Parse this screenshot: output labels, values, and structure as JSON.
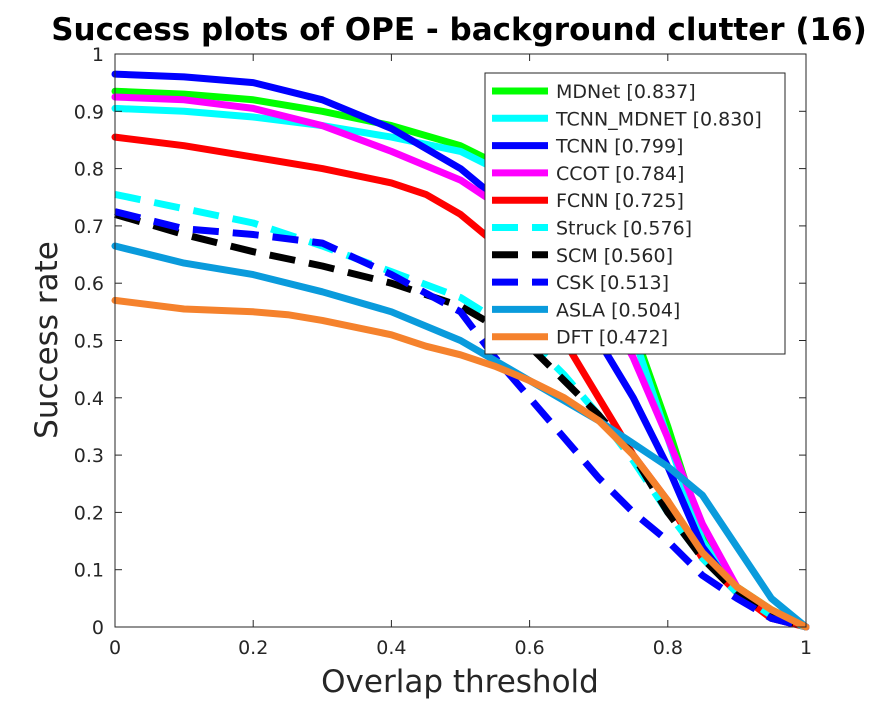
{
  "chart_data": {
    "type": "line",
    "title": "Success plots of OPE - background clutter (16)",
    "xlabel": "Overlap threshold",
    "ylabel": "Success rate",
    "xlim": [
      0,
      1
    ],
    "ylim": [
      0,
      1
    ],
    "x_ticks": [
      "0",
      "0.2",
      "0.4",
      "0.6",
      "0.8",
      "1"
    ],
    "y_ticks": [
      "0",
      "0.1",
      "0.2",
      "0.3",
      "0.4",
      "0.5",
      "0.6",
      "0.7",
      "0.8",
      "0.9",
      "1"
    ],
    "grid": false,
    "legend_position": "top-right",
    "series": [
      {
        "name": "MDNet [0.837]",
        "color": "#00ff00",
        "style": "solid",
        "points": [
          [
            0,
            0.935
          ],
          [
            0.1,
            0.93
          ],
          [
            0.2,
            0.92
          ],
          [
            0.3,
            0.9
          ],
          [
            0.4,
            0.875
          ],
          [
            0.5,
            0.84
          ],
          [
            0.6,
            0.78
          ],
          [
            0.7,
            0.65
          ],
          [
            0.75,
            0.52
          ],
          [
            0.8,
            0.35
          ],
          [
            0.85,
            0.16
          ],
          [
            0.9,
            0.07
          ],
          [
            0.95,
            0.03
          ],
          [
            1,
            0
          ]
        ]
      },
      {
        "name": "TCNN_MDNET [0.830]",
        "color": "#00ffff",
        "style": "solid",
        "points": [
          [
            0,
            0.905
          ],
          [
            0.1,
            0.9
          ],
          [
            0.2,
            0.89
          ],
          [
            0.3,
            0.875
          ],
          [
            0.4,
            0.855
          ],
          [
            0.5,
            0.83
          ],
          [
            0.6,
            0.77
          ],
          [
            0.7,
            0.64
          ],
          [
            0.75,
            0.51
          ],
          [
            0.8,
            0.33
          ],
          [
            0.85,
            0.15
          ],
          [
            0.9,
            0.06
          ],
          [
            0.95,
            0.025
          ],
          [
            1,
            0
          ]
        ]
      },
      {
        "name": "TCNN [0.799]",
        "color": "#0000ff",
        "style": "solid",
        "points": [
          [
            0,
            0.965
          ],
          [
            0.1,
            0.96
          ],
          [
            0.2,
            0.95
          ],
          [
            0.3,
            0.92
          ],
          [
            0.4,
            0.87
          ],
          [
            0.5,
            0.8
          ],
          [
            0.6,
            0.7
          ],
          [
            0.65,
            0.6
          ],
          [
            0.7,
            0.5
          ],
          [
            0.75,
            0.4
          ],
          [
            0.8,
            0.28
          ],
          [
            0.85,
            0.14
          ],
          [
            0.9,
            0.06
          ],
          [
            0.95,
            0.02
          ],
          [
            1,
            0
          ]
        ]
      },
      {
        "name": "CCOT [0.784]",
        "color": "#ff00ff",
        "style": "solid",
        "points": [
          [
            0,
            0.925
          ],
          [
            0.1,
            0.92
          ],
          [
            0.2,
            0.905
          ],
          [
            0.3,
            0.875
          ],
          [
            0.4,
            0.83
          ],
          [
            0.5,
            0.78
          ],
          [
            0.6,
            0.7
          ],
          [
            0.7,
            0.58
          ],
          [
            0.75,
            0.47
          ],
          [
            0.8,
            0.33
          ],
          [
            0.85,
            0.18
          ],
          [
            0.9,
            0.07
          ],
          [
            0.95,
            0.025
          ],
          [
            1,
            0
          ]
        ]
      },
      {
        "name": "FCNN [0.725]",
        "color": "#ff0000",
        "style": "solid",
        "points": [
          [
            0,
            0.855
          ],
          [
            0.1,
            0.84
          ],
          [
            0.2,
            0.82
          ],
          [
            0.3,
            0.8
          ],
          [
            0.4,
            0.775
          ],
          [
            0.45,
            0.755
          ],
          [
            0.5,
            0.72
          ],
          [
            0.55,
            0.67
          ],
          [
            0.6,
            0.6
          ],
          [
            0.65,
            0.5
          ],
          [
            0.7,
            0.4
          ],
          [
            0.75,
            0.3
          ],
          [
            0.8,
            0.22
          ],
          [
            0.85,
            0.12
          ],
          [
            0.9,
            0.06
          ],
          [
            0.95,
            0.015
          ],
          [
            1,
            0
          ]
        ]
      },
      {
        "name": "Struck [0.576]",
        "color": "#00ffff",
        "style": "dashed",
        "points": [
          [
            0,
            0.755
          ],
          [
            0.1,
            0.73
          ],
          [
            0.2,
            0.705
          ],
          [
            0.3,
            0.665
          ],
          [
            0.4,
            0.62
          ],
          [
            0.5,
            0.575
          ],
          [
            0.6,
            0.5
          ],
          [
            0.65,
            0.44
          ],
          [
            0.7,
            0.37
          ],
          [
            0.75,
            0.29
          ],
          [
            0.8,
            0.2
          ],
          [
            0.85,
            0.12
          ],
          [
            0.9,
            0.06
          ],
          [
            0.95,
            0.02
          ],
          [
            1,
            0
          ]
        ]
      },
      {
        "name": "SCM [0.560]",
        "color": "#000000",
        "style": "dashed",
        "points": [
          [
            0,
            0.72
          ],
          [
            0.1,
            0.685
          ],
          [
            0.2,
            0.655
          ],
          [
            0.3,
            0.63
          ],
          [
            0.4,
            0.6
          ],
          [
            0.5,
            0.56
          ],
          [
            0.6,
            0.49
          ],
          [
            0.65,
            0.43
          ],
          [
            0.7,
            0.37
          ],
          [
            0.75,
            0.3
          ],
          [
            0.8,
            0.2
          ],
          [
            0.85,
            0.12
          ],
          [
            0.9,
            0.06
          ],
          [
            0.95,
            0.02
          ],
          [
            1,
            0
          ]
        ]
      },
      {
        "name": "CSK [0.513]",
        "color": "#0000ff",
        "style": "dashed",
        "points": [
          [
            0,
            0.725
          ],
          [
            0.1,
            0.695
          ],
          [
            0.2,
            0.685
          ],
          [
            0.3,
            0.67
          ],
          [
            0.4,
            0.615
          ],
          [
            0.5,
            0.55
          ],
          [
            0.55,
            0.47
          ],
          [
            0.6,
            0.4
          ],
          [
            0.65,
            0.33
          ],
          [
            0.7,
            0.26
          ],
          [
            0.75,
            0.2
          ],
          [
            0.8,
            0.15
          ],
          [
            0.85,
            0.09
          ],
          [
            0.9,
            0.05
          ],
          [
            0.95,
            0.015
          ],
          [
            1,
            0
          ]
        ]
      },
      {
        "name": "ASLA [0.504]",
        "color": "#0a9bdc",
        "style": "solid",
        "points": [
          [
            0,
            0.665
          ],
          [
            0.1,
            0.635
          ],
          [
            0.2,
            0.615
          ],
          [
            0.3,
            0.585
          ],
          [
            0.4,
            0.55
          ],
          [
            0.5,
            0.5
          ],
          [
            0.6,
            0.43
          ],
          [
            0.7,
            0.36
          ],
          [
            0.75,
            0.32
          ],
          [
            0.8,
            0.28
          ],
          [
            0.85,
            0.23
          ],
          [
            0.9,
            0.14
          ],
          [
            0.95,
            0.05
          ],
          [
            1,
            0
          ]
        ]
      },
      {
        "name": "DFT [0.472]",
        "color": "#f5822d",
        "style": "solid",
        "points": [
          [
            0,
            0.57
          ],
          [
            0.1,
            0.555
          ],
          [
            0.2,
            0.55
          ],
          [
            0.25,
            0.545
          ],
          [
            0.3,
            0.535
          ],
          [
            0.4,
            0.51
          ],
          [
            0.45,
            0.49
          ],
          [
            0.5,
            0.475
          ],
          [
            0.55,
            0.455
          ],
          [
            0.6,
            0.43
          ],
          [
            0.65,
            0.4
          ],
          [
            0.7,
            0.36
          ],
          [
            0.75,
            0.3
          ],
          [
            0.8,
            0.22
          ],
          [
            0.85,
            0.13
          ],
          [
            0.9,
            0.07
          ],
          [
            0.95,
            0.03
          ],
          [
            1,
            0
          ]
        ]
      }
    ]
  }
}
